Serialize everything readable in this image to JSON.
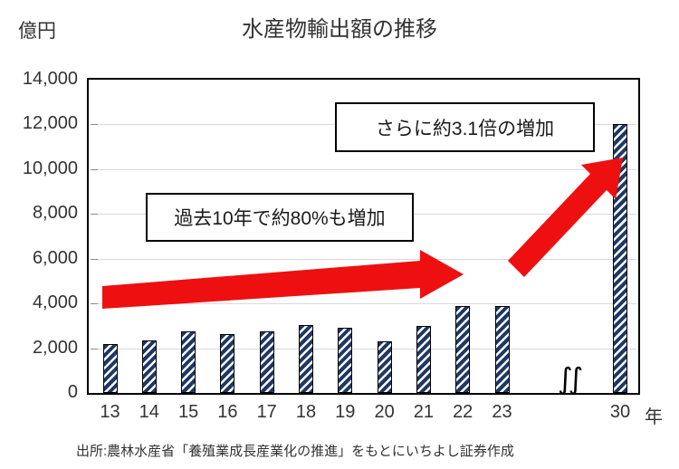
{
  "title": "水産物輸出額の推移",
  "y_axis": {
    "unit_label": "億円",
    "tick_labels": [
      "0",
      "2,000",
      "4,000",
      "6,000",
      "8,000",
      "10,000",
      "12,000",
      "14,000"
    ]
  },
  "x_axis": {
    "suffix_label": "年",
    "break_mark": "∫∫"
  },
  "annotations": [
    {
      "id": "past-decade",
      "text": "過去10年で約80%も増加"
    },
    {
      "id": "further-increase",
      "text": "さらに約3.1倍の増加"
    }
  ],
  "source_note": "出所:農林水産省「養殖業成長産業化の推進」をもとにいちよし証券作成",
  "colors": {
    "bar": "#1f3864",
    "bar_hatch": "#ffffff",
    "bar_outline": "#000000",
    "arrow": "#ee1010",
    "gridline": "#d9d9d9",
    "axis": "#000000",
    "text": "#333333"
  },
  "chart_data": {
    "type": "bar",
    "title": "水産物輸出額の推移",
    "xlabel": "年",
    "ylabel": "億円",
    "categories": [
      "13",
      "14",
      "15",
      "16",
      "17",
      "18",
      "19",
      "20",
      "21",
      "22",
      "23",
      "30"
    ],
    "values": [
      2200,
      2350,
      2750,
      2650,
      2750,
      3050,
      2900,
      2300,
      3000,
      3900,
      3900,
      12000
    ],
    "ylim": [
      0,
      14000
    ],
    "ytick_interval": 2000,
    "grid": true,
    "legend": false,
    "bar_style": "diagonal-hatch-navy",
    "axis_break_between": [
      "23",
      "30"
    ],
    "annotations": [
      "過去10年で約80%も増加",
      "さらに約3.1倍の増加"
    ]
  }
}
